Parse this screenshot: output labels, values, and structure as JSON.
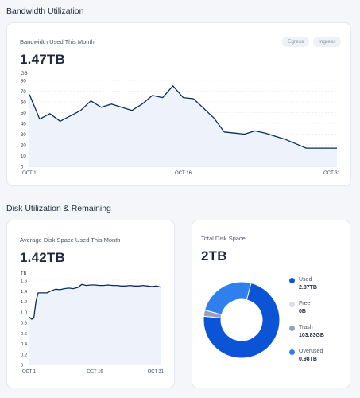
{
  "bandwidth": {
    "section_title": "Bandwidth Utilization",
    "card_label": "Bandwidth Used This Month",
    "value": "1.47TB",
    "tabs": [
      {
        "label": "Egress"
      },
      {
        "label": "Ingress"
      }
    ]
  },
  "disk": {
    "section_title": "Disk Utilization & Remaining",
    "usage_label": "Average Disk Space Used This Month",
    "usage_value": "1.42TB",
    "total_label": "Total Disk Space",
    "total_value": "2TB",
    "legend": [
      {
        "name": "Used",
        "value": "2.87TB",
        "color": "#0b54d6"
      },
      {
        "name": "Free",
        "value": "0B",
        "color": "#d9dde5"
      },
      {
        "name": "Trash",
        "value": "103.83GB",
        "color": "#91a3bf"
      },
      {
        "name": "Overused",
        "value": "0.98TB",
        "color": "#2f80ed"
      }
    ]
  },
  "chart_data": [
    {
      "type": "area",
      "ylabel": "GB",
      "ylim": [
        0,
        80
      ],
      "yticks": [
        "0",
        "10",
        "20",
        "30",
        "40",
        "50",
        "60",
        "70",
        "80"
      ],
      "xticks": [
        "OCT 1",
        "OCT 16",
        "OCT 31"
      ],
      "x": [
        1,
        2,
        3,
        4,
        5,
        6,
        7,
        8,
        9,
        10,
        11,
        12,
        13,
        14,
        15,
        16,
        17,
        18,
        19,
        20,
        21,
        22,
        23,
        24,
        25,
        26,
        27,
        28,
        29,
        30,
        31
      ],
      "values": [
        67,
        44,
        49,
        42,
        47,
        52,
        61,
        55,
        58,
        55,
        52,
        58,
        66,
        64,
        75,
        64,
        63,
        54,
        45,
        32,
        31,
        30,
        33,
        31,
        28,
        25,
        21,
        17,
        17,
        17,
        17
      ],
      "line_color": "#0f2b5b",
      "fill_color": "#eef2fb",
      "grid": true
    },
    {
      "type": "area",
      "ylabel": "TB",
      "ylim": [
        0,
        1.6
      ],
      "yticks": [
        "0",
        "0.2",
        "0.4",
        "0.6",
        "0.8",
        "1.0",
        "1.2",
        "1.4",
        "1.6"
      ],
      "xticks": [
        "OCT 1",
        "OCT 16",
        "OCT 31"
      ],
      "x": [
        1,
        1.5,
        2,
        2.5,
        3,
        4,
        5,
        6,
        7,
        8,
        9,
        10,
        11,
        12,
        13,
        14,
        15,
        16,
        17,
        18,
        19,
        20,
        21,
        22,
        23,
        24,
        25,
        26,
        27,
        28,
        29,
        30,
        31
      ],
      "values": [
        0.9,
        0.86,
        0.88,
        1.2,
        1.36,
        1.36,
        1.36,
        1.4,
        1.43,
        1.42,
        1.44,
        1.45,
        1.44,
        1.46,
        1.52,
        1.5,
        1.51,
        1.51,
        1.5,
        1.5,
        1.51,
        1.5,
        1.5,
        1.49,
        1.49,
        1.5,
        1.49,
        1.49,
        1.5,
        1.49,
        1.48,
        1.49,
        1.47
      ],
      "line_color": "#0f2b5b",
      "fill_color": "#eef2fb",
      "grid": true
    },
    {
      "type": "pie",
      "style": "donut",
      "categories": [
        "Used",
        "Free",
        "Trash",
        "Overused"
      ],
      "values": [
        2.87,
        0,
        0.10383,
        0.98
      ],
      "colors": [
        "#0b54d6",
        "#d9dde5",
        "#91a3bf",
        "#2f80ed"
      ]
    }
  ]
}
